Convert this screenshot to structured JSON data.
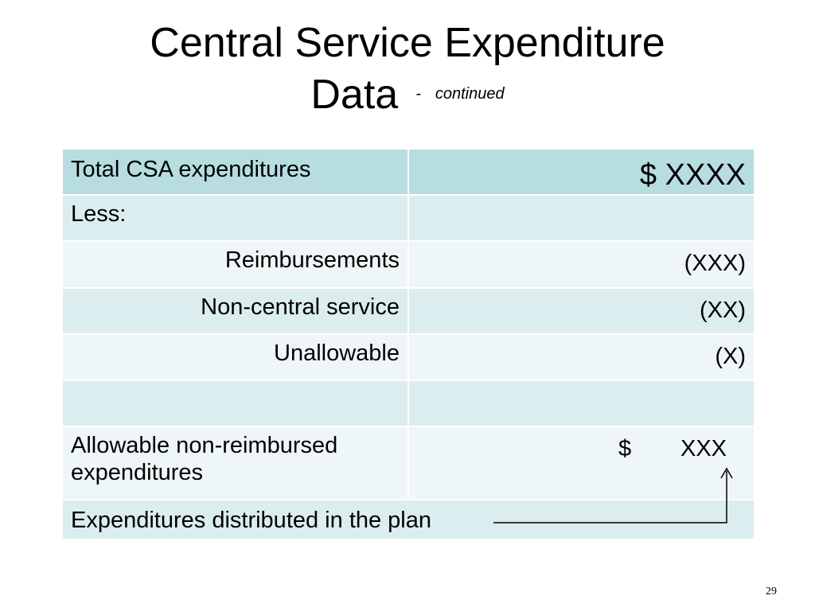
{
  "slide": {
    "title_line1": "Central Service Expenditure",
    "title_line2": "Data",
    "title_dash": "-",
    "title_suffix": "continued",
    "page_number": "29"
  },
  "table": {
    "header": {
      "label": "Total CSA expenditures",
      "amount": "$ XXXX"
    },
    "rows": [
      {
        "label": "Less:",
        "amount": ""
      },
      {
        "label": "Reimbursements",
        "amount": "(XXX)"
      },
      {
        "label": "Non-central service",
        "amount": "(XX)"
      },
      {
        "label": "Unallowable",
        "amount": "(X)"
      },
      {
        "label": "",
        "amount": ""
      },
      {
        "label": "Allowable non-reimbursed expenditures",
        "amount_currency": "$",
        "amount_value": "XXX"
      },
      {
        "label": "Expenditures distributed in the plan",
        "amount": ""
      }
    ],
    "colors": {
      "header_bg": "#b7dde0",
      "row_dark": "#dcedef",
      "row_light": "#eef6f7"
    }
  }
}
